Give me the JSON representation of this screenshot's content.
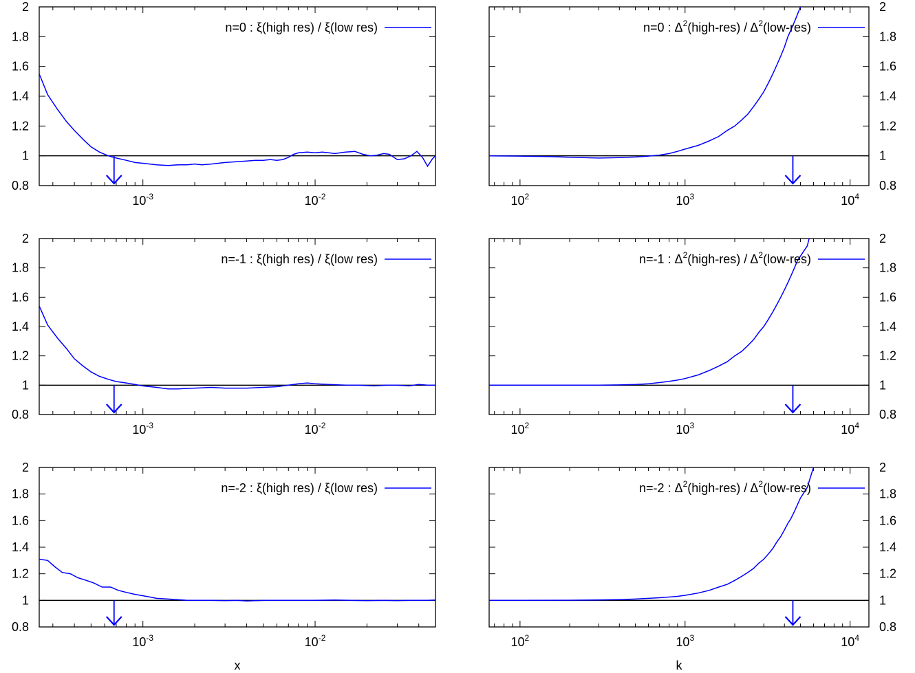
{
  "chart_data": [
    {
      "panel": "left-top",
      "type": "line",
      "xscale": "log",
      "xlim": [
        0.00025,
        0.05
      ],
      "ylim": [
        0.8,
        2
      ],
      "xticks": [
        0.001,
        0.01
      ],
      "xtick_labels": [
        {
          "base": "10",
          "exp": "-3"
        },
        {
          "base": "10",
          "exp": "-2"
        }
      ],
      "yticks": [
        0.8,
        1,
        1.2,
        1.4,
        1.6,
        1.8,
        2
      ],
      "ytick_labels": [
        "0.8",
        "1",
        "1.2",
        "1.4",
        "1.6",
        "1.8",
        "2"
      ],
      "ytick_side": "left",
      "xlabel": "",
      "legend_text": "n=0 : ξ(high res) / ξ(low res)",
      "legend_has_sup": false,
      "reference_line": 1,
      "arrow_x": 0.00068,
      "series": [
        {
          "x": [
            0.00025,
            0.00028,
            0.00032,
            0.00036,
            0.0004,
            0.00045,
            0.0005,
            0.00056,
            0.00063,
            0.0007,
            0.0008,
            0.0009,
            0.001,
            0.0012,
            0.0014,
            0.0016,
            0.0018,
            0.002,
            0.0022,
            0.0025,
            0.003,
            0.0035,
            0.004,
            0.0045,
            0.005,
            0.0055,
            0.006,
            0.0065,
            0.007,
            0.0075,
            0.008,
            0.009,
            0.01,
            0.011,
            0.012,
            0.013,
            0.014,
            0.015,
            0.017,
            0.019,
            0.021,
            0.023,
            0.025,
            0.027,
            0.03,
            0.033,
            0.036,
            0.039,
            0.042,
            0.045,
            0.048,
            0.05
          ],
          "y": [
            1.55,
            1.41,
            1.31,
            1.23,
            1.17,
            1.11,
            1.06,
            1.025,
            1.0,
            0.985,
            0.97,
            0.955,
            0.95,
            0.94,
            0.935,
            0.94,
            0.94,
            0.945,
            0.94,
            0.945,
            0.955,
            0.96,
            0.965,
            0.97,
            0.97,
            0.975,
            0.97,
            0.975,
            0.99,
            1.01,
            1.02,
            1.025,
            1.02,
            1.025,
            1.02,
            1.015,
            1.02,
            1.025,
            1.03,
            1.01,
            1.0,
            1.005,
            1.015,
            1.01,
            0.975,
            0.98,
            1.0,
            1.03,
            0.99,
            0.93,
            0.98,
            1.0
          ]
        }
      ]
    },
    {
      "panel": "right-top",
      "type": "line",
      "xscale": "log",
      "xlim": [
        65,
        13000
      ],
      "ylim": [
        0.8,
        2
      ],
      "xticks": [
        100,
        1000,
        10000
      ],
      "xtick_labels": [
        {
          "base": "10",
          "exp": "2"
        },
        {
          "base": "10",
          "exp": "3"
        },
        {
          "base": "10",
          "exp": "4"
        }
      ],
      "yticks": [
        0.8,
        1,
        1.2,
        1.4,
        1.6,
        1.8,
        2
      ],
      "ytick_labels": [
        "0.8",
        "1",
        "1.2",
        "1.4",
        "1.6",
        "1.8",
        "2"
      ],
      "ytick_side": "right",
      "xlabel": "",
      "legend_text": "n=0 : Δ2(high-res) / Δ2(low-res)",
      "legend_has_sup": true,
      "reference_line": 1,
      "arrow_x": 4500,
      "series": [
        {
          "x": [
            65,
            100,
            150,
            200,
            300,
            400,
            500,
            600,
            700,
            800,
            900,
            1000,
            1200,
            1400,
            1600,
            1800,
            2000,
            2200,
            2400,
            2600,
            2800,
            3000,
            3200,
            3400,
            3600,
            3800,
            4000,
            4200,
            4400,
            4600,
            4800,
            5000,
            5500
          ],
          "y": [
            1.0,
            0.998,
            0.995,
            0.99,
            0.985,
            0.988,
            0.992,
            0.998,
            1.005,
            1.015,
            1.03,
            1.045,
            1.07,
            1.1,
            1.13,
            1.17,
            1.2,
            1.24,
            1.28,
            1.33,
            1.38,
            1.43,
            1.49,
            1.55,
            1.61,
            1.67,
            1.73,
            1.8,
            1.85,
            1.9,
            1.95,
            2.0,
            2.1
          ]
        }
      ]
    },
    {
      "panel": "left-middle",
      "type": "line",
      "xscale": "log",
      "xlim": [
        0.00025,
        0.05
      ],
      "ylim": [
        0.8,
        2
      ],
      "xticks": [
        0.001,
        0.01
      ],
      "xtick_labels": [
        {
          "base": "10",
          "exp": "-3"
        },
        {
          "base": "10",
          "exp": "-2"
        }
      ],
      "yticks": [
        0.8,
        1,
        1.2,
        1.4,
        1.6,
        1.8,
        2
      ],
      "ytick_labels": [
        "0.8",
        "1",
        "1.2",
        "1.4",
        "1.6",
        "1.8",
        "2"
      ],
      "ytick_side": "left",
      "xlabel": "",
      "legend_text": "n=-1 : ξ(high res) / ξ(low res)",
      "legend_has_sup": false,
      "reference_line": 1,
      "arrow_x": 0.00068,
      "series": [
        {
          "x": [
            0.00025,
            0.00028,
            0.00032,
            0.00036,
            0.0004,
            0.00045,
            0.0005,
            0.00056,
            0.00063,
            0.0007,
            0.0008,
            0.0009,
            0.001,
            0.0012,
            0.0014,
            0.0016,
            0.0018,
            0.002,
            0.0025,
            0.003,
            0.0035,
            0.004,
            0.005,
            0.006,
            0.007,
            0.008,
            0.009,
            0.01,
            0.012,
            0.015,
            0.018,
            0.022,
            0.026,
            0.03,
            0.035,
            0.04,
            0.045,
            0.05
          ],
          "y": [
            1.54,
            1.41,
            1.32,
            1.25,
            1.18,
            1.13,
            1.09,
            1.06,
            1.04,
            1.025,
            1.015,
            1.005,
            0.995,
            0.985,
            0.975,
            0.975,
            0.978,
            0.98,
            0.985,
            0.98,
            0.98,
            0.98,
            0.985,
            0.99,
            1.0,
            1.01,
            1.015,
            1.01,
            1.005,
            1.0,
            1.0,
            0.995,
            1.0,
            1.0,
            0.995,
            1.005,
            1.0,
            1.0
          ]
        }
      ]
    },
    {
      "panel": "right-middle",
      "type": "line",
      "xscale": "log",
      "xlim": [
        65,
        13000
      ],
      "ylim": [
        0.8,
        2
      ],
      "xticks": [
        100,
        1000,
        10000
      ],
      "xtick_labels": [
        {
          "base": "10",
          "exp": "2"
        },
        {
          "base": "10",
          "exp": "3"
        },
        {
          "base": "10",
          "exp": "4"
        }
      ],
      "yticks": [
        0.8,
        1,
        1.2,
        1.4,
        1.6,
        1.8,
        2
      ],
      "ytick_labels": [
        "0.8",
        "1",
        "1.2",
        "1.4",
        "1.6",
        "1.8",
        "2"
      ],
      "ytick_side": "right",
      "xlabel": "",
      "legend_text": "n=-1 : Δ2(high-res) / Δ2(low-res)",
      "legend_has_sup": true,
      "reference_line": 1,
      "arrow_x": 4500,
      "series": [
        {
          "x": [
            65,
            100,
            200,
            300,
            400,
            500,
            600,
            700,
            800,
            900,
            1000,
            1200,
            1400,
            1600,
            1800,
            2000,
            2200,
            2400,
            2600,
            2800,
            3000,
            3200,
            3400,
            3600,
            3800,
            4000,
            4200,
            4400,
            4600,
            4800,
            5000,
            5500,
            5800
          ],
          "y": [
            1.0,
            1.0,
            1.0,
            1.0,
            1.002,
            1.005,
            1.01,
            1.018,
            1.026,
            1.035,
            1.045,
            1.07,
            1.1,
            1.13,
            1.16,
            1.2,
            1.23,
            1.27,
            1.31,
            1.36,
            1.4,
            1.45,
            1.5,
            1.55,
            1.6,
            1.65,
            1.7,
            1.75,
            1.8,
            1.85,
            1.88,
            1.95,
            2.05
          ]
        }
      ]
    },
    {
      "panel": "left-bottom",
      "type": "line",
      "xscale": "log",
      "xlim": [
        0.00025,
        0.05
      ],
      "ylim": [
        0.8,
        2
      ],
      "xticks": [
        0.001,
        0.01
      ],
      "xtick_labels": [
        {
          "base": "10",
          "exp": "-3"
        },
        {
          "base": "10",
          "exp": "-2"
        }
      ],
      "yticks": [
        0.8,
        1,
        1.2,
        1.4,
        1.6,
        1.8,
        2
      ],
      "ytick_labels": [
        "0.8",
        "1",
        "1.2",
        "1.4",
        "1.6",
        "1.8",
        "2"
      ],
      "ytick_side": "left",
      "xlabel": "x",
      "legend_text": "n=-2 : ξ(high res) / ξ(low res)",
      "legend_has_sup": false,
      "reference_line": 1,
      "arrow_x": 0.00068,
      "series": [
        {
          "x": [
            0.00025,
            0.00028,
            0.00031,
            0.00034,
            0.00038,
            0.00042,
            0.00047,
            0.00052,
            0.00058,
            0.00065,
            0.00072,
            0.0008,
            0.0009,
            0.001,
            0.0011,
            0.0012,
            0.0014,
            0.0016,
            0.0018,
            0.002,
            0.0025,
            0.003,
            0.0035,
            0.004,
            0.005,
            0.006,
            0.008,
            0.01,
            0.013,
            0.016,
            0.02,
            0.025,
            0.03,
            0.035,
            0.04,
            0.045,
            0.05
          ],
          "y": [
            1.31,
            1.3,
            1.25,
            1.21,
            1.2,
            1.17,
            1.15,
            1.13,
            1.1,
            1.1,
            1.075,
            1.06,
            1.045,
            1.035,
            1.025,
            1.015,
            1.01,
            1.005,
            1.0,
            1.0,
            1.0,
            0.998,
            1.0,
            0.995,
            1.0,
            1.0,
            1.0,
            1.0,
            1.002,
            1.0,
            0.998,
            1.0,
            0.998,
            1.0,
            1.0,
            1.0,
            1.002
          ]
        }
      ]
    },
    {
      "panel": "right-bottom",
      "type": "line",
      "xscale": "log",
      "xlim": [
        65,
        13000
      ],
      "ylim": [
        0.8,
        2
      ],
      "xticks": [
        100,
        1000,
        10000
      ],
      "xtick_labels": [
        {
          "base": "10",
          "exp": "2"
        },
        {
          "base": "10",
          "exp": "3"
        },
        {
          "base": "10",
          "exp": "4"
        }
      ],
      "yticks": [
        0.8,
        1,
        1.2,
        1.4,
        1.6,
        1.8,
        2
      ],
      "ytick_labels": [
        "0.8",
        "1",
        "1.2",
        "1.4",
        "1.6",
        "1.8",
        "2"
      ],
      "ytick_side": "right",
      "xlabel": "k",
      "legend_text": "n=-2 : Δ2(high-res) / Δ2(low-res)",
      "legend_has_sup": true,
      "reference_line": 1,
      "arrow_x": 4500,
      "series": [
        {
          "x": [
            65,
            100,
            200,
            300,
            400,
            500,
            600,
            700,
            800,
            900,
            1000,
            1200,
            1400,
            1600,
            1800,
            2000,
            2200,
            2400,
            2600,
            2800,
            3000,
            3200,
            3400,
            3600,
            3800,
            4000,
            4200,
            4400,
            4600,
            4800,
            5000,
            5500,
            6000
          ],
          "y": [
            1.0,
            1.0,
            1.001,
            1.003,
            1.006,
            1.01,
            1.015,
            1.02,
            1.025,
            1.03,
            1.038,
            1.055,
            1.075,
            1.1,
            1.12,
            1.15,
            1.18,
            1.21,
            1.24,
            1.28,
            1.31,
            1.35,
            1.39,
            1.44,
            1.48,
            1.53,
            1.58,
            1.62,
            1.67,
            1.72,
            1.77,
            1.85,
            2.0
          ]
        }
      ]
    }
  ],
  "style": {
    "series_color": "#0000ff",
    "arrow_color": "#0000ff",
    "reference_line_color": "#000000",
    "axis_color": "#000000",
    "background": "#ffffff"
  }
}
